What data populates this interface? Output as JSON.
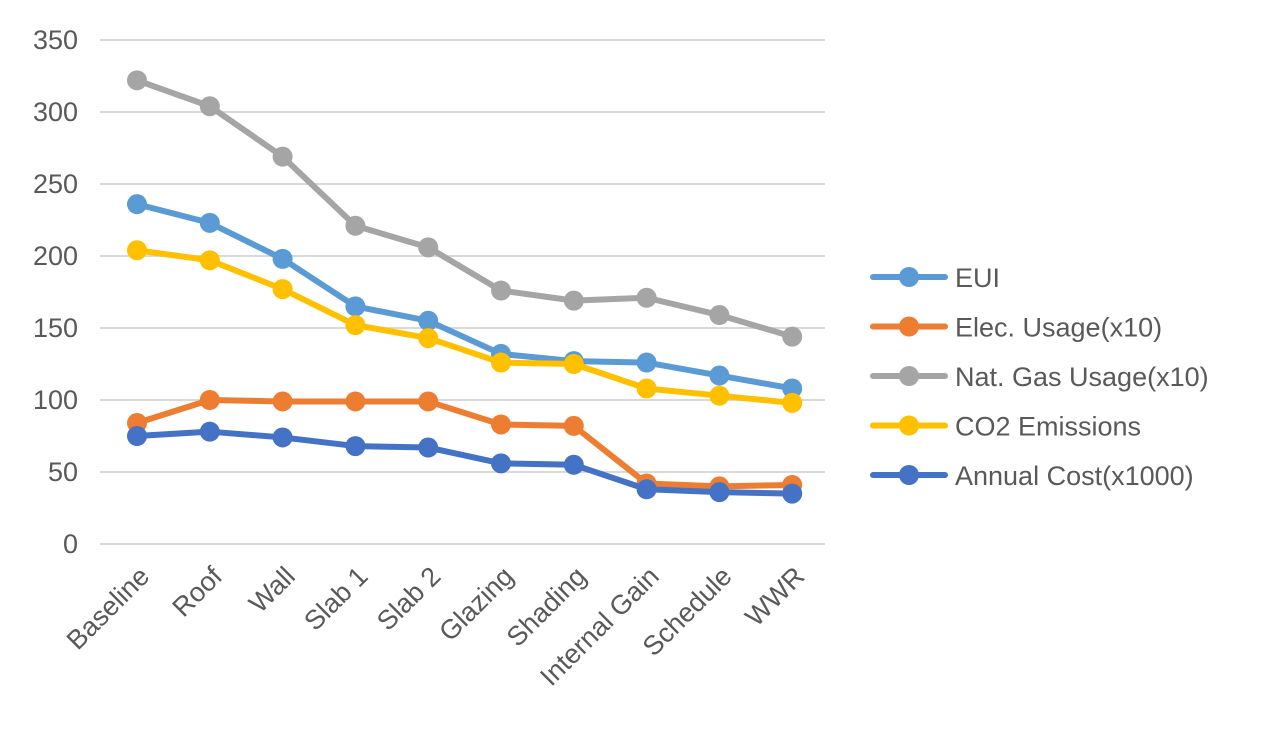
{
  "chart_data": {
    "type": "line",
    "title": "",
    "xlabel": "",
    "ylabel": "",
    "categories": [
      "Baseline",
      "Roof",
      "Wall",
      "Slab 1",
      "Slab 2",
      "Glazing",
      "Shading",
      "Internal Gain",
      "Schedule",
      "WWR"
    ],
    "ylim": [
      0,
      350
    ],
    "yticks": [
      0,
      50,
      100,
      150,
      200,
      250,
      300,
      350
    ],
    "grid": true,
    "legend_position": "right",
    "series": [
      {
        "name": "EUI",
        "color": "#5B9BD5",
        "values": [
          236,
          223,
          198,
          165,
          155,
          132,
          127,
          126,
          117,
          108
        ]
      },
      {
        "name": "Elec. Usage(x10)",
        "color": "#ED7D31",
        "values": [
          84,
          100,
          99,
          99,
          99,
          83,
          82,
          42,
          40,
          41
        ]
      },
      {
        "name": "Nat. Gas Usage(x10)",
        "color": "#A5A5A5",
        "values": [
          322,
          304,
          269,
          221,
          206,
          176,
          169,
          171,
          159,
          144
        ]
      },
      {
        "name": "CO2 Emissions",
        "color": "#FFC000",
        "values": [
          204,
          197,
          177,
          152,
          143,
          126,
          125,
          108,
          103,
          98
        ]
      },
      {
        "name": "Annual Cost(x1000)",
        "color": "#4472C4",
        "values": [
          75,
          78,
          74,
          68,
          67,
          56,
          55,
          38,
          36,
          35
        ]
      }
    ]
  }
}
